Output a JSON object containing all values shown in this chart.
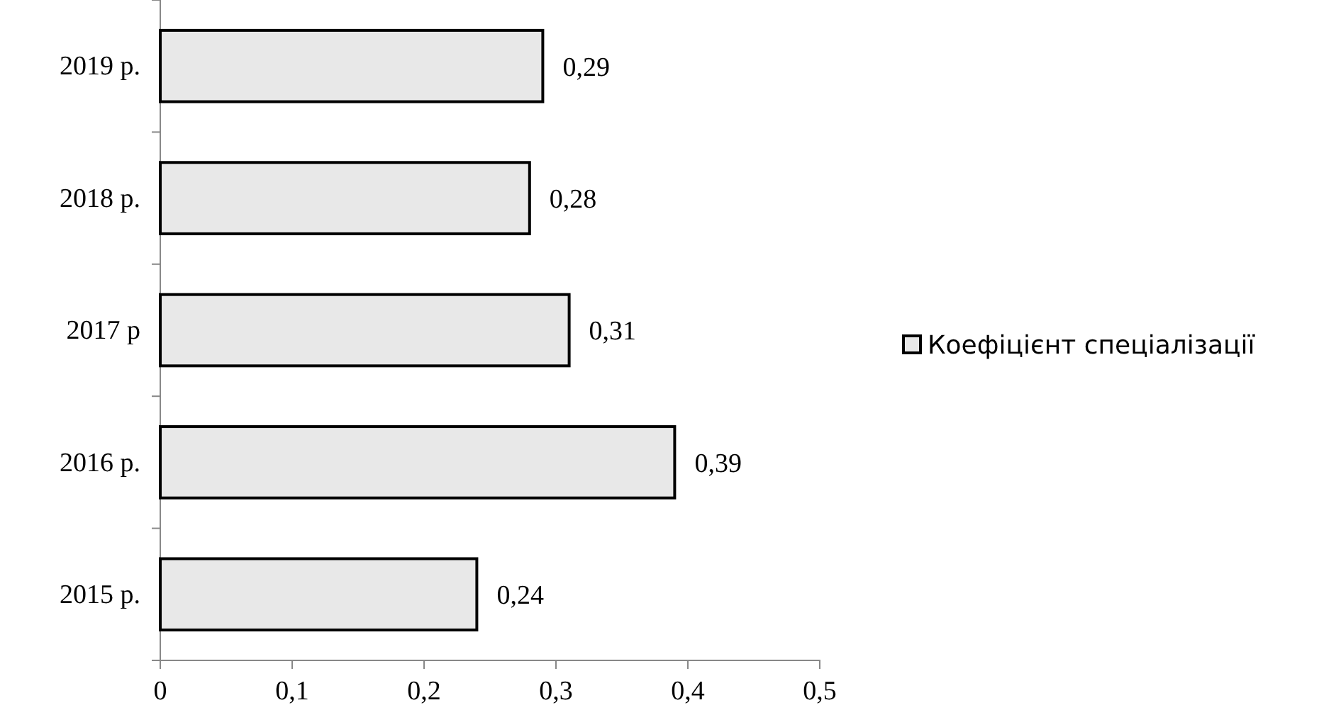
{
  "chart_data": {
    "type": "bar",
    "orientation": "horizontal",
    "categories": [
      "2019 р.",
      "2018 р.",
      "2017 р",
      "2016 р.",
      "2015 р."
    ],
    "series": [
      {
        "name": "Коефіцієнт спеціалізації",
        "color": "#e8e8e8",
        "values": [
          0.29,
          0.28,
          0.31,
          0.39,
          0.24
        ],
        "value_labels": [
          "0,29",
          "0,28",
          "0,31",
          "0,39",
          "0,24"
        ]
      }
    ],
    "xlim": [
      0,
      0.5
    ],
    "xticks": [
      0,
      {
        "value": 0.1,
        "label": "0,1"
      },
      {
        "value": 0.2,
        "label": "0,2"
      },
      {
        "value": 0.3,
        "label": "0,3"
      },
      {
        "value": 0.4,
        "label": "0,4"
      },
      {
        "value": 0.5,
        "label": "0,5"
      }
    ],
    "legend": "right"
  }
}
